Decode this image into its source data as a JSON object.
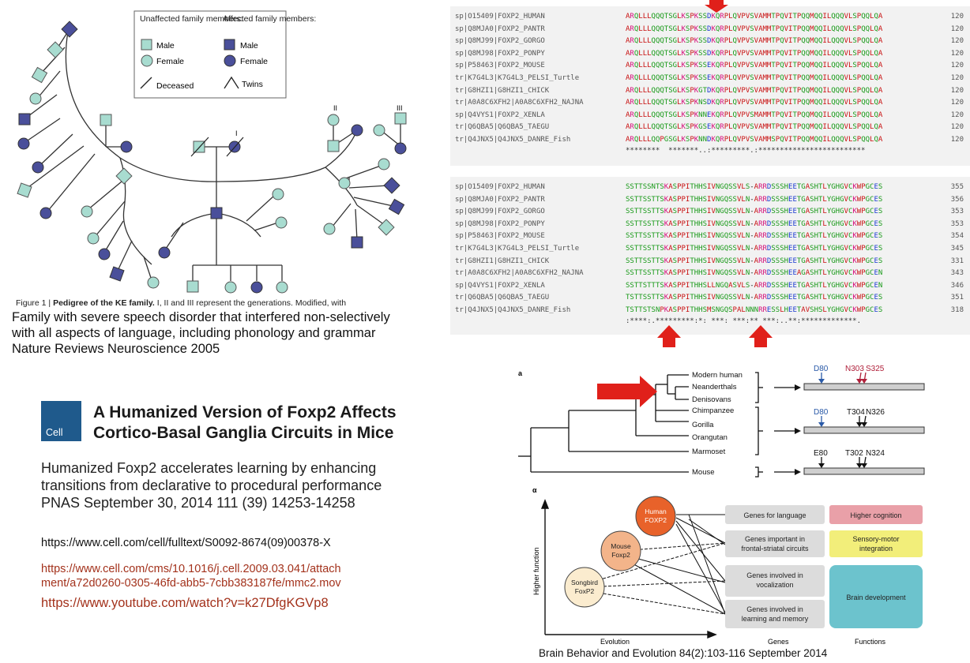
{
  "pedigree": {
    "legend": {
      "unaffected_header": "Unaffected family members:",
      "affected_header": "Affected family members:",
      "male": "Male",
      "female": "Female",
      "deceased": "Deceased",
      "twins": "Twins"
    },
    "generations": [
      "I",
      "II",
      "III"
    ],
    "caption_prefix": "Figure 1 | ",
    "caption_bold": "Pedigree of the KE family.",
    "caption_rest": " I, II and III represent the generations. Modified, with",
    "description_lines": [
      "Family with severe speech disorder that interfered non-selectively",
      "with all aspects of language, including phonology and grammar",
      "Nature Reviews Neuroscience 2005"
    ]
  },
  "cell_article": {
    "logo_text": "Cell",
    "title_lines": [
      "A Humanized Version of Foxp2 Affects",
      "Cortico-Basal Ganglia Circuits in Mice"
    ],
    "pnas_lines": [
      "Humanized Foxp2 accelerates learning by enhancing",
      "transitions from declarative to procedural performance",
      "PNAS September 30, 2014 111 (39) 14253-14258"
    ],
    "url_fulltext": "https://www.cell.com/cell/fulltext/S0092-8674(09)00378-X",
    "url_attachment_lines": [
      "https://www.cell.com/cms/10.1016/j.cell.2009.03.041/attach",
      "ment/a72d0260-0305-46fd-abb5-7cbb383187fe/mmc2.mov"
    ],
    "url_youtube": "https://www.youtube.com/watch?v=k27DfgKGVp8"
  },
  "alignment_top": {
    "rows": [
      {
        "id": "sp|O15409|FOXP2_HUMAN",
        "seq": "ARQLLLQQQTSGLKSPKSSDKQRPLQVPVSVAMMTPQVITPQQMQQILQQQVLSPQQLQA",
        "end": "120"
      },
      {
        "id": "sp|Q8MJA0|FOXP2_PANTR",
        "seq": "ARQLLLQQQTSGLKSPKSSDKQRPLQVPVSVAMMTPQVITPQQMQQILQQQVLSPQQLQA",
        "end": "120"
      },
      {
        "id": "sp|Q8MJ99|FOXP2_GORGO",
        "seq": "ARQLLLQQQTSGLKSPKSSDKQRPLQVPVSVAMMTPQVITPQQMQQILQQQVLSPQQLQA",
        "end": "120"
      },
      {
        "id": "sp|Q8MJ98|FOXP2_PONPY",
        "seq": "ARQLLLQQQTSGLKSPKSSDKQRPLQVPVSVAMMTPQVITPQQMQQILQQQVLSPQQLQA",
        "end": "120"
      },
      {
        "id": "sp|P58463|FOXP2_MOUSE",
        "seq": "ARQLLLQQQTSGLKSPKSSEKQRPLQVPVSVAMMTPQVITPQQMQQILQQQVLSPQQLQA",
        "end": "120"
      },
      {
        "id": "tr|K7G4L3|K7G4L3_PELSI_Turtle",
        "seq": "ARQLLLQQQTSGLKSPKSSEKQRPLQVPVSVAMMTPQVITPQQMQQILQQQVLSPQQLQA",
        "end": "120"
      },
      {
        "id": "tr|G8HZI1|G8HZI1_CHICK",
        "seq": "ARQLLLQQQTSGLKSPKGTDKQRPLQVPVSVAMMTPQVITPQQMQQILQQQVLSPQQLQA",
        "end": "120"
      },
      {
        "id": "tr|A0A8C6XFH2|A0A8C6XFH2_NAJNA",
        "seq": "ARQLLLQQQTSGLKSPKNSDKQRPLQVPVSVAMMTPQVITPQQMQQILQQQVLSPQQLQA",
        "end": "120"
      },
      {
        "id": "sp|Q4VYS1|FOXP2_XENLA",
        "seq": "ARQLLLQQQTSGLKSPKNNEKQRPLQVPVSMAMMTPQVITPQQMQQILQQQVLSPQQLQA",
        "end": "120"
      },
      {
        "id": "tr|Q6QBA5|Q6QBA5_TAEGU",
        "seq": "ARQLLLQQQTSGLKSPKGSEKQRPLQVPVSVAMMTPQVITPQQMQQILQQQVLSPQQLQA",
        "end": "120"
      },
      {
        "id": "tr|Q4JNX5|Q4JNX5_DANRE_Fish",
        "seq": "ARQLLLQQPGSGLKSPKNNDKQRPLQVPVSVAMMSPQVITPQQMQQILQQQVLSPQQLQA",
        "end": "120"
      }
    ],
    "consensus": "********  *******..:*********.:*************************"
  },
  "alignment_bottom": {
    "rows": [
      {
        "id": "sp|O15409|FOXP2_HUMAN",
        "seq": "SSTTSSNTSKASPPITHHSIVNGQSSVLS-ARRDSSSHEETGASHTLYGHGVCKWPGCES",
        "end": "355"
      },
      {
        "id": "sp|Q8MJA0|FOXP2_PANTR",
        "seq": "SSTTSSTTSKASPPITHHSIVNGQSSVLN-ARRDSSSHEETGASHTLYGHGVCKWPGCES",
        "end": "356"
      },
      {
        "id": "sp|Q8MJ99|FOXP2_GORGO",
        "seq": "SSTTSSTTSKASPPITHHSIVNGQSSVLN-ARRDSSSHEETGASHTLYGHGVCKWPGCES",
        "end": "353"
      },
      {
        "id": "sp|Q8MJ98|FOXP2_PONPY",
        "seq": "SSTTSSTTSKASPPITHHSIVNGQSSVLN-ARRDSSSHEETGASHTLYGHGVCKWPGCES",
        "end": "353"
      },
      {
        "id": "sp|P58463|FOXP2_MOUSE",
        "seq": "SSTTSSTTSKASPPITHHSIVNGQSSVLN-ARRDSSSHEETGASHTLYGHGVCKWPGCES",
        "end": "354"
      },
      {
        "id": "tr|K7G4L3|K7G4L3_PELSI_Turtle",
        "seq": "SSTTSSTTSKASPPITHHSIVNGQSSVLN-ARRDSSSHEETGASHTLYGHGVCKWPGCES",
        "end": "345"
      },
      {
        "id": "tr|G8HZI1|G8HZI1_CHICK",
        "seq": "SSTTSSTTSKASPPITHHSIVNGQSSVLN-ARRDSSSHEETGASHTLYGHGVCKWPGCES",
        "end": "331"
      },
      {
        "id": "tr|A0A8C6XFH2|A0A8C6XFH2_NAJNA",
        "seq": "SSTTSSTTSKASPPITHHSIVNGQSSVLN-ARRDSSSHEEAGASHTLYGHGVCKWPGCEN",
        "end": "343"
      },
      {
        "id": "sp|Q4VYS1|FOXP2_XENLA",
        "seq": "SSTTSTTTSKASPPITHHSLLNGQASVLS-ARRDSSSHEETGASHTLYGHGVCKWPGCEN",
        "end": "346"
      },
      {
        "id": "tr|Q6QBA5|Q6QBA5_TAEGU",
        "seq": "TSTTSSTTSKASPPITHHSIVNGQSSVLN-ARRDSSSHEETGASHTLYGHGVCKWPGCES",
        "end": "351"
      },
      {
        "id": "tr|Q4JNX5|Q4JNX5_DANRE_Fish",
        "seq": "TSTTSTSNPKASPPITHHSMSNGQSPALNNNRRESSLHEETAVSHSLYGHGVCKWPGCES",
        "end": "318"
      }
    ],
    "consensus": ":****:.*********:*: ***: ***:** ***:..**:*************."
  },
  "tree": {
    "panel_label": "a",
    "taxa": [
      "Modern human",
      "Neanderthals",
      "Denisovans",
      "Chimpanzee",
      "Gorilla",
      "Orangutan",
      "Marmoset",
      "Mouse"
    ],
    "mutations": [
      {
        "labels": [
          "D80",
          "N303",
          "S325"
        ],
        "colors": [
          "#2a5aa8",
          "#b0203a",
          "#b0203a"
        ]
      },
      {
        "labels": [
          "D80",
          "T304",
          "N326"
        ],
        "colors": [
          "#2a5aa8",
          "#111111",
          "#111111"
        ]
      },
      {
        "labels": [
          "E80",
          "T302",
          "N324"
        ],
        "colors": [
          "#111111",
          "#111111",
          "#111111"
        ]
      }
    ]
  },
  "network": {
    "panel_label": "α",
    "y_axis": "Higher function",
    "x_axis_evolution": "Evolution",
    "x_axis_genes": "Genes",
    "x_axis_functions": "Functions",
    "nodes": [
      {
        "name": "Human FOXP2",
        "lines": [
          "Human",
          "FOXP2"
        ],
        "color": "#e8622a"
      },
      {
        "name": "Mouse Foxp2",
        "lines": [
          "Mouse",
          "Foxp2"
        ],
        "color": "#f3b48a"
      },
      {
        "name": "Songbird FoxP2",
        "lines": [
          "Songbird",
          "FoxP2"
        ],
        "color": "#fbeccf"
      }
    ],
    "genes": [
      [
        "Genes for language"
      ],
      [
        "Genes important in",
        "frontal-striatal circuits"
      ],
      [
        "Genes involved in",
        "vocalization"
      ],
      [
        "Genes involved in",
        "learning and memory"
      ]
    ],
    "functions": [
      {
        "lines": [
          "Higher cognition"
        ],
        "color": "#e9a0a8"
      },
      {
        "lines": [
          "Sensory-motor",
          "integration"
        ],
        "color": "#f2ee7a"
      },
      {
        "lines": [
          "Brain development"
        ],
        "color": "#6cc3cd"
      }
    ]
  },
  "bbe_citation": "Brain Behavior and Evolution 84(2):103-116 September 2014"
}
